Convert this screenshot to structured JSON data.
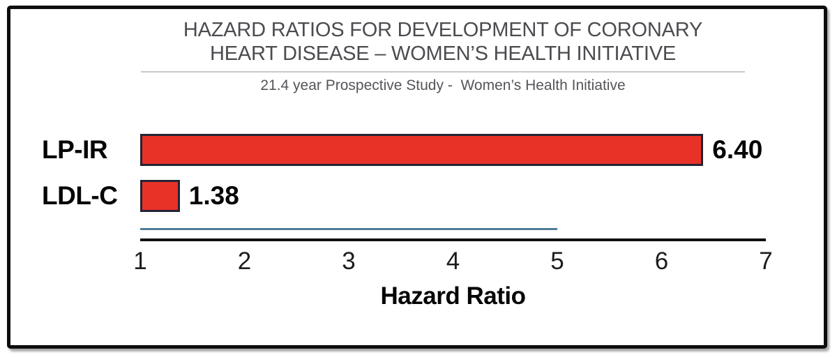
{
  "chart_data": {
    "type": "bar",
    "orientation": "horizontal",
    "title": "HAZARD RATIOS FOR DEVELOPMENT OF CORONARY HEART DISEASE – WOMEN’S HEALTH INITIATIVE",
    "title_lines": [
      "HAZARD RATIOS FOR DEVELOPMENT OF CORONARY",
      "HEART DISEASE – WOMEN’S HEALTH INITIATIVE"
    ],
    "subtitle": "21.4 year Prospective Study -  Women’s Health Initiative",
    "categories": [
      "LP-IR",
      "LDL-C"
    ],
    "values": [
      6.4,
      1.38
    ],
    "value_labels": [
      "6.40",
      "1.38"
    ],
    "xlabel": "Hazard Ratio",
    "x_ticks": [
      "1",
      "2",
      "3",
      "4",
      "5",
      "6",
      "7"
    ],
    "xlim": [
      1,
      7
    ],
    "grid": false,
    "legend_position": "none",
    "bar_color": "#e83228",
    "bar_border_color": "#232434",
    "axis_line_color": "#101010",
    "underline_color": "#4d7d97",
    "underline_extent": 5.0
  },
  "colors": {
    "frame_border": "#0d0d0d",
    "title_text": "#4b4b50",
    "subtitle_text": "#54545a",
    "divider": "#c9c9c9",
    "label_text": "#050505",
    "tick_text": "#1c1c1c"
  }
}
